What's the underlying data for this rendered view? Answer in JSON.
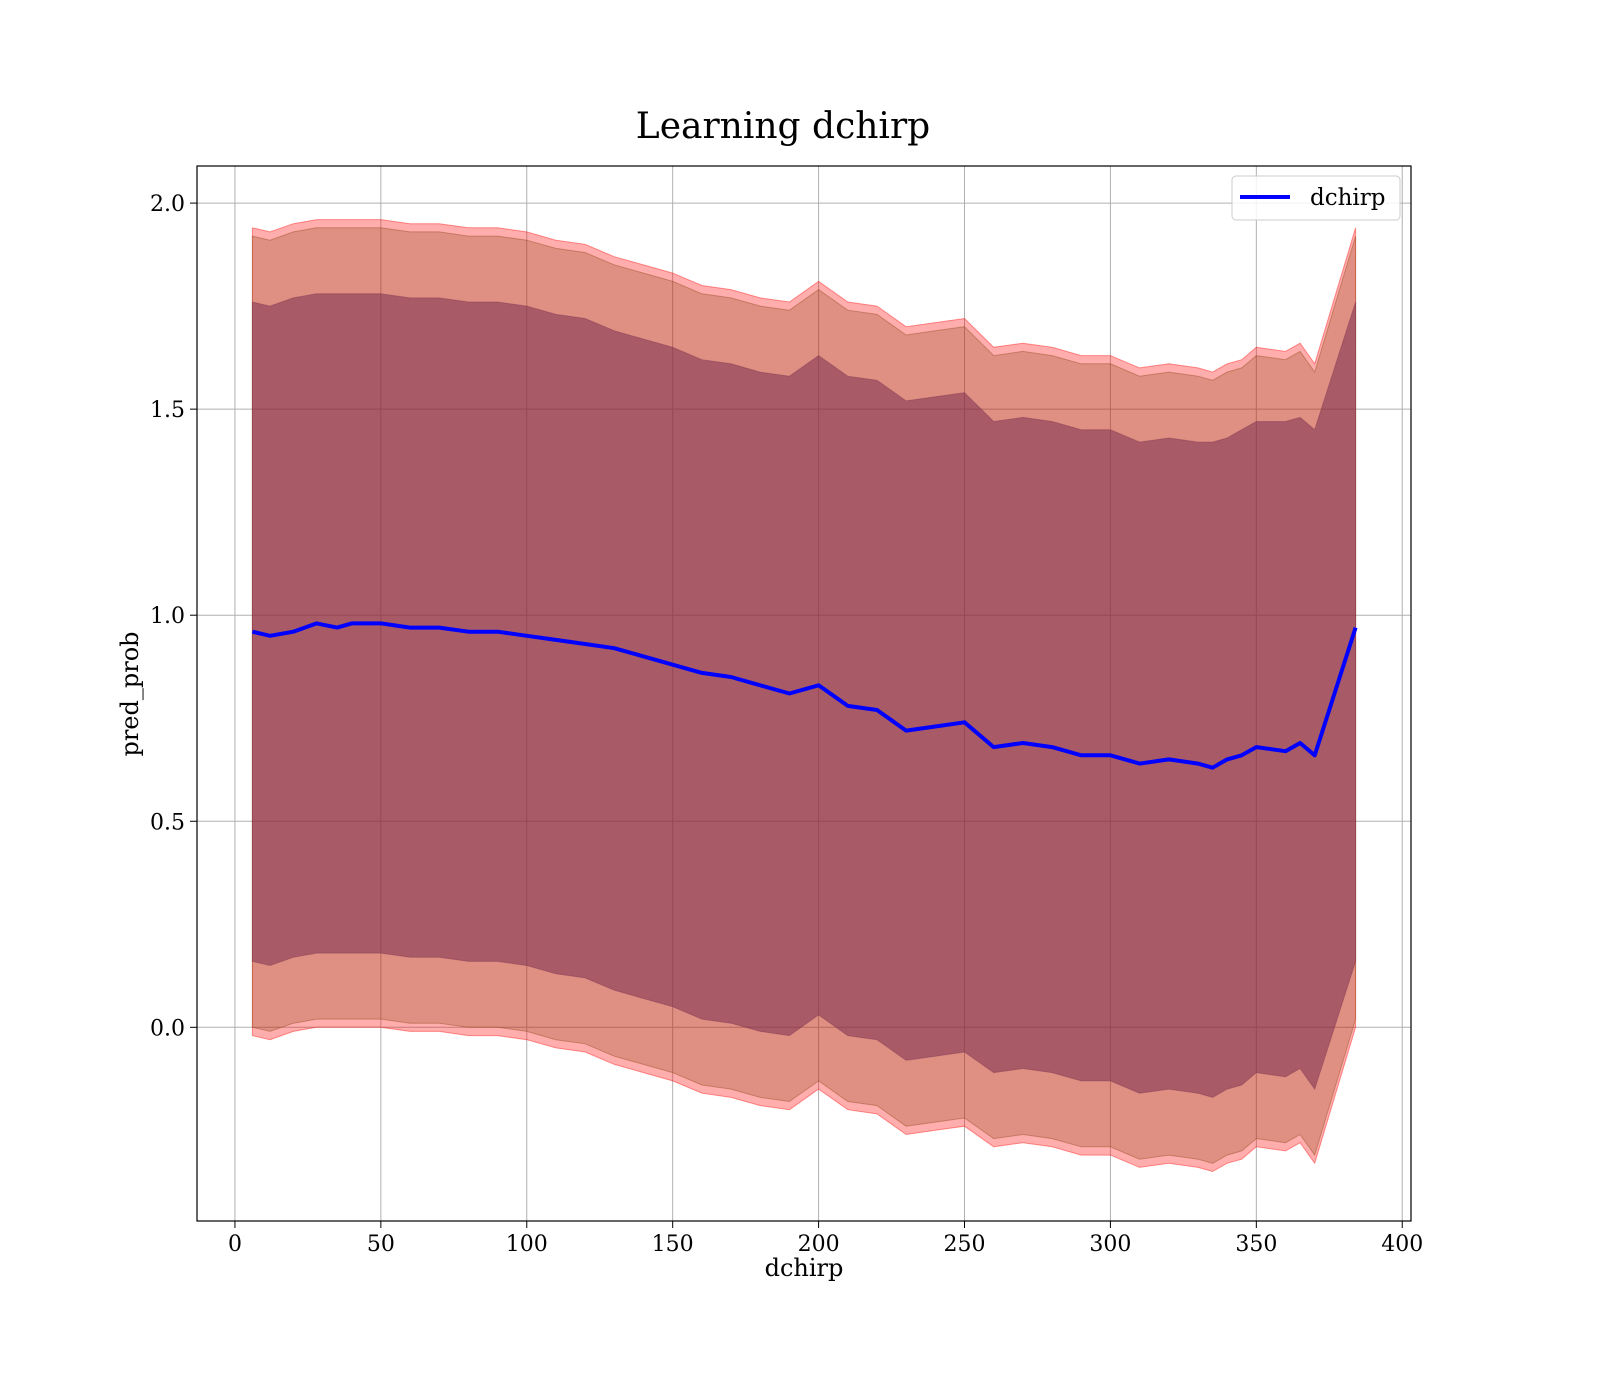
{
  "chart_data": {
    "type": "line",
    "title": "Learning dchirp",
    "xlabel": "dchirp",
    "ylabel": "pred_prob",
    "xlim": [
      -13,
      403
    ],
    "ylim": [
      -0.47,
      2.09
    ],
    "xticks": [
      0,
      50,
      100,
      150,
      200,
      250,
      300,
      350,
      400
    ],
    "yticks": [
      0.0,
      0.5,
      1.0,
      1.5,
      2.0
    ],
    "xtick_labels": [
      "0",
      "50",
      "100",
      "150",
      "200",
      "250",
      "300",
      "350",
      "400"
    ],
    "ytick_labels": [
      "0.0",
      "0.5",
      "1.0",
      "1.5",
      "2.0"
    ],
    "grid": true,
    "legend_position": "top-right",
    "x": [
      6,
      12,
      20,
      28,
      35,
      40,
      50,
      60,
      70,
      80,
      90,
      100,
      110,
      120,
      130,
      140,
      150,
      160,
      170,
      180,
      190,
      200,
      210,
      220,
      230,
      240,
      250,
      260,
      270,
      280,
      290,
      300,
      310,
      320,
      330,
      335,
      340,
      345,
      350,
      360,
      365,
      370,
      384
    ],
    "series": [
      {
        "name": "dchirp",
        "color": "#0000ff",
        "values": [
          0.96,
          0.95,
          0.96,
          0.98,
          0.97,
          0.98,
          0.98,
          0.97,
          0.97,
          0.96,
          0.96,
          0.95,
          0.94,
          0.93,
          0.92,
          0.9,
          0.88,
          0.86,
          0.85,
          0.83,
          0.81,
          0.83,
          0.78,
          0.77,
          0.72,
          0.73,
          0.74,
          0.68,
          0.69,
          0.68,
          0.66,
          0.66,
          0.64,
          0.65,
          0.64,
          0.63,
          0.65,
          0.66,
          0.68,
          0.67,
          0.69,
          0.66,
          0.97
        ]
      }
    ],
    "bands": [
      {
        "color": "#ff0000",
        "opacity": 0.32,
        "upper": [
          1.94,
          1.93,
          1.95,
          1.96,
          1.96,
          1.96,
          1.96,
          1.95,
          1.95,
          1.94,
          1.94,
          1.93,
          1.91,
          1.9,
          1.87,
          1.85,
          1.83,
          1.8,
          1.79,
          1.77,
          1.76,
          1.81,
          1.76,
          1.75,
          1.7,
          1.71,
          1.72,
          1.65,
          1.66,
          1.65,
          1.63,
          1.63,
          1.6,
          1.61,
          1.6,
          1.59,
          1.61,
          1.62,
          1.65,
          1.64,
          1.66,
          1.61,
          1.94
        ],
        "lower": [
          -0.02,
          -0.03,
          -0.01,
          0.0,
          0.0,
          0.0,
          0.0,
          -0.01,
          -0.01,
          -0.02,
          -0.02,
          -0.03,
          -0.05,
          -0.06,
          -0.09,
          -0.11,
          -0.13,
          -0.16,
          -0.17,
          -0.19,
          -0.2,
          -0.15,
          -0.2,
          -0.21,
          -0.26,
          -0.25,
          -0.24,
          -0.29,
          -0.28,
          -0.29,
          -0.31,
          -0.31,
          -0.34,
          -0.33,
          -0.34,
          -0.35,
          -0.33,
          -0.32,
          -0.29,
          -0.3,
          -0.28,
          -0.33,
          0.0
        ]
      },
      {
        "color": "#8b4513",
        "opacity": 0.28,
        "upper": [
          1.92,
          1.91,
          1.93,
          1.94,
          1.94,
          1.94,
          1.94,
          1.93,
          1.93,
          1.92,
          1.92,
          1.91,
          1.89,
          1.88,
          1.85,
          1.83,
          1.81,
          1.78,
          1.77,
          1.75,
          1.74,
          1.79,
          1.74,
          1.73,
          1.68,
          1.69,
          1.7,
          1.63,
          1.64,
          1.63,
          1.61,
          1.61,
          1.58,
          1.59,
          1.58,
          1.57,
          1.59,
          1.6,
          1.63,
          1.62,
          1.64,
          1.59,
          1.92
        ],
        "lower": [
          0.0,
          -0.01,
          0.01,
          0.02,
          0.02,
          0.02,
          0.02,
          0.01,
          0.01,
          0.0,
          0.0,
          -0.01,
          -0.03,
          -0.04,
          -0.07,
          -0.09,
          -0.11,
          -0.14,
          -0.15,
          -0.17,
          -0.18,
          -0.13,
          -0.18,
          -0.19,
          -0.24,
          -0.23,
          -0.22,
          -0.27,
          -0.26,
          -0.27,
          -0.29,
          -0.29,
          -0.32,
          -0.31,
          -0.32,
          -0.33,
          -0.31,
          -0.3,
          -0.27,
          -0.28,
          -0.26,
          -0.31,
          0.02
        ]
      },
      {
        "color": "#7a3050",
        "opacity": 0.55,
        "upper": [
          1.76,
          1.75,
          1.77,
          1.78,
          1.78,
          1.78,
          1.78,
          1.77,
          1.77,
          1.76,
          1.76,
          1.75,
          1.73,
          1.72,
          1.69,
          1.67,
          1.65,
          1.62,
          1.61,
          1.59,
          1.58,
          1.63,
          1.58,
          1.57,
          1.52,
          1.53,
          1.54,
          1.47,
          1.48,
          1.47,
          1.45,
          1.45,
          1.42,
          1.43,
          1.42,
          1.42,
          1.43,
          1.45,
          1.47,
          1.47,
          1.48,
          1.45,
          1.76
        ],
        "lower": [
          0.16,
          0.15,
          0.17,
          0.18,
          0.18,
          0.18,
          0.18,
          0.17,
          0.17,
          0.16,
          0.16,
          0.15,
          0.13,
          0.12,
          0.09,
          0.07,
          0.05,
          0.02,
          0.01,
          -0.01,
          -0.02,
          0.03,
          -0.02,
          -0.03,
          -0.08,
          -0.07,
          -0.06,
          -0.11,
          -0.1,
          -0.11,
          -0.13,
          -0.13,
          -0.16,
          -0.15,
          -0.16,
          -0.17,
          -0.15,
          -0.14,
          -0.11,
          -0.12,
          -0.1,
          -0.15,
          0.16
        ]
      }
    ]
  }
}
